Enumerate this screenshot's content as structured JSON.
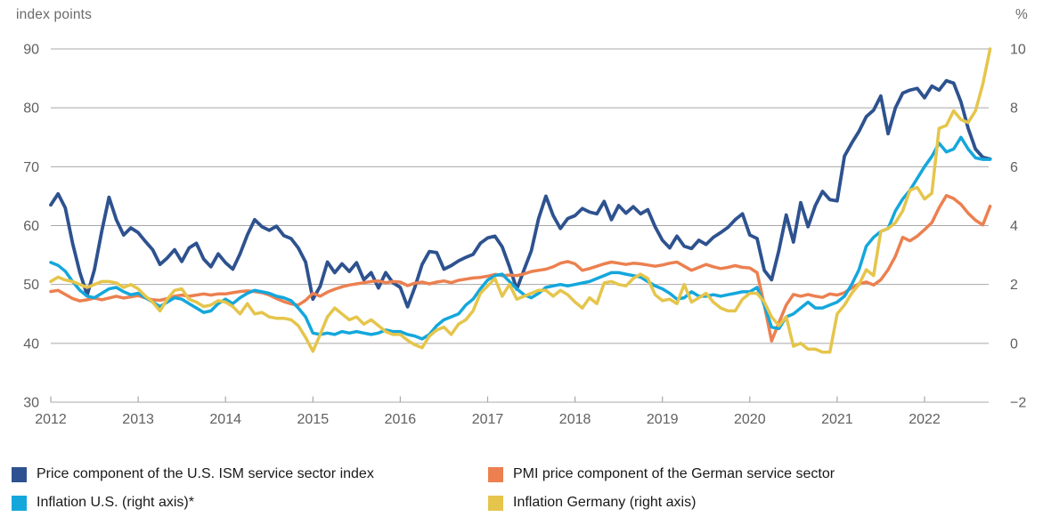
{
  "header": {
    "left_axis_title": "index points",
    "right_axis_title": "%"
  },
  "chart_data": {
    "type": "line",
    "title": "",
    "x_axis": {
      "tick_labels": [
        "2012",
        "2013",
        "2014",
        "2015",
        "2016",
        "2017",
        "2018",
        "2019",
        "2020",
        "2021",
        "2022"
      ],
      "start": "2012-01",
      "end": "2022-10",
      "frequency": "monthly"
    },
    "left_axis": {
      "title": "index points",
      "ticks": [
        90,
        80,
        70,
        60,
        50,
        40,
        30
      ],
      "range": [
        30,
        90
      ]
    },
    "right_axis": {
      "title": "%",
      "ticks": [
        10,
        8,
        6,
        4,
        2,
        0,
        -2
      ],
      "range": [
        -2,
        10
      ]
    },
    "grid": "horizontal",
    "colors": {
      "ism_us": "#2e528f",
      "pmi_germany": "#ec8050",
      "inflation_us": "#14a7dc",
      "inflation_germany": "#e5c54b",
      "gridline": "#a8a8a8",
      "axis_text": "#606060"
    },
    "series": [
      {
        "id": "ism_us",
        "label": "Price component of the U.S. ISM service sector index",
        "axis": "left",
        "color": "#2e528f",
        "values": [
          63.5,
          65.4,
          63.0,
          57.0,
          52.0,
          48.2,
          52.5,
          59.0,
          64.8,
          61.0,
          58.4,
          59.6,
          58.8,
          57.3,
          55.9,
          53.4,
          54.5,
          55.9,
          53.9,
          56.2,
          57.0,
          54.3,
          53.0,
          55.2,
          53.7,
          52.6,
          55.2,
          58.4,
          61.0,
          59.8,
          59.2,
          59.9,
          58.3,
          57.8,
          56.2,
          53.8,
          47.5,
          49.7,
          53.8,
          52.0,
          53.5,
          52.2,
          53.7,
          50.8,
          52.0,
          49.4,
          52.0,
          50.3,
          49.5,
          46.2,
          49.5,
          53.4,
          55.6,
          55.4,
          52.6,
          53.2,
          54.0,
          54.6,
          55.1,
          57.0,
          57.9,
          58.2,
          56.4,
          53.0,
          49.2,
          52.5,
          55.7,
          61.2,
          65.0,
          61.7,
          59.5,
          61.2,
          61.7,
          62.9,
          62.3,
          62.0,
          64.1,
          61.0,
          63.4,
          62.1,
          63.2,
          62.0,
          62.7,
          59.8,
          57.5,
          56.2,
          58.2,
          56.5,
          56.1,
          57.5,
          56.8,
          58.0,
          58.8,
          59.7,
          61.0,
          62.0,
          58.4,
          57.8,
          52.4,
          50.8,
          55.8,
          61.8,
          57.2,
          63.9,
          59.8,
          63.4,
          65.8,
          64.4,
          64.2,
          71.8,
          74.0,
          76.0,
          78.5,
          79.6,
          82.0,
          75.6,
          80.0,
          82.5,
          83.0,
          83.3,
          81.7,
          83.7,
          83.0,
          84.6,
          84.2,
          81.0,
          76.5,
          73.0,
          71.6,
          71.3
        ]
      },
      {
        "id": "pmi_germany",
        "label": "PMI price component of the German service sector",
        "axis": "left",
        "color": "#ec8050",
        "values": [
          48.8,
          49.0,
          48.3,
          47.6,
          47.2,
          47.4,
          47.7,
          47.4,
          47.7,
          48.0,
          47.7,
          47.9,
          48.1,
          47.7,
          47.4,
          47.3,
          47.6,
          48.0,
          48.2,
          48.0,
          48.2,
          48.4,
          48.2,
          48.4,
          48.4,
          48.6,
          48.8,
          48.9,
          48.8,
          48.6,
          48.2,
          47.6,
          47.1,
          46.7,
          46.5,
          47.3,
          48.5,
          48.0,
          48.7,
          49.2,
          49.6,
          49.9,
          50.1,
          50.3,
          50.5,
          50.6,
          50.3,
          50.5,
          50.4,
          49.8,
          50.2,
          50.4,
          50.1,
          50.4,
          50.6,
          50.3,
          50.7,
          50.9,
          51.1,
          51.2,
          51.4,
          51.7,
          51.5,
          51.6,
          51.5,
          51.8,
          52.2,
          52.4,
          52.6,
          53.0,
          53.6,
          53.9,
          53.5,
          52.4,
          52.7,
          53.1,
          53.5,
          53.8,
          53.6,
          53.4,
          53.6,
          53.5,
          53.3,
          53.1,
          53.3,
          53.6,
          53.8,
          53.1,
          52.4,
          52.9,
          53.4,
          53.0,
          52.7,
          52.9,
          53.2,
          52.9,
          52.8,
          52.0,
          46.5,
          40.4,
          43.5,
          46.5,
          48.3,
          48.0,
          48.3,
          48.0,
          47.8,
          48.4,
          48.2,
          48.6,
          49.4,
          50.1,
          50.4,
          49.9,
          50.8,
          52.5,
          54.8,
          58.0,
          57.4,
          58.2,
          59.3,
          60.5,
          63.0,
          65.1,
          64.6,
          63.6,
          62.1,
          60.9,
          60.1,
          63.3
        ]
      },
      {
        "id": "inflation_us",
        "label": "Inflation U.S. (right axis)*",
        "axis": "right",
        "color": "#14a7dc",
        "values": [
          2.75,
          2.65,
          2.45,
          2.1,
          1.8,
          1.6,
          1.55,
          1.7,
          1.85,
          1.9,
          1.75,
          1.65,
          1.7,
          1.55,
          1.4,
          1.25,
          1.4,
          1.55,
          1.5,
          1.35,
          1.2,
          1.05,
          1.1,
          1.35,
          1.5,
          1.35,
          1.55,
          1.7,
          1.8,
          1.75,
          1.7,
          1.6,
          1.55,
          1.45,
          1.2,
          0.9,
          0.35,
          0.3,
          0.35,
          0.3,
          0.4,
          0.35,
          0.4,
          0.35,
          0.3,
          0.35,
          0.45,
          0.4,
          0.4,
          0.3,
          0.25,
          0.15,
          0.3,
          0.6,
          0.8,
          0.9,
          1.0,
          1.3,
          1.5,
          1.85,
          2.15,
          2.3,
          2.35,
          2.1,
          1.85,
          1.65,
          1.55,
          1.7,
          1.9,
          1.95,
          2.0,
          1.95,
          2.0,
          2.05,
          2.1,
          2.2,
          2.3,
          2.4,
          2.4,
          2.35,
          2.3,
          2.25,
          2.1,
          1.95,
          1.85,
          1.7,
          1.5,
          1.55,
          1.75,
          1.6,
          1.6,
          1.65,
          1.6,
          1.65,
          1.7,
          1.75,
          1.75,
          1.9,
          1.3,
          0.55,
          0.5,
          0.9,
          1.0,
          1.2,
          1.4,
          1.2,
          1.2,
          1.3,
          1.4,
          1.6,
          2.0,
          2.5,
          3.3,
          3.6,
          3.8,
          3.9,
          4.5,
          4.9,
          5.2,
          5.6,
          6.0,
          6.35,
          6.8,
          6.5,
          6.6,
          7.0,
          6.6,
          6.3,
          6.25,
          6.25
        ]
      },
      {
        "id": "inflation_germany",
        "label": "Inflation Germany (right axis)",
        "axis": "right",
        "color": "#e5c54b",
        "values": [
          2.1,
          2.25,
          2.15,
          2.1,
          2.0,
          1.9,
          2.0,
          2.1,
          2.1,
          2.05,
          1.9,
          2.0,
          1.85,
          1.6,
          1.4,
          1.1,
          1.5,
          1.8,
          1.85,
          1.5,
          1.4,
          1.25,
          1.3,
          1.45,
          1.4,
          1.25,
          1.0,
          1.35,
          1.0,
          1.05,
          0.9,
          0.85,
          0.85,
          0.8,
          0.6,
          0.2,
          -0.27,
          0.3,
          0.9,
          1.2,
          1.0,
          0.8,
          0.9,
          0.65,
          0.8,
          0.6,
          0.4,
          0.3,
          0.3,
          0.1,
          -0.05,
          -0.15,
          0.25,
          0.45,
          0.55,
          0.3,
          0.65,
          0.8,
          1.1,
          1.7,
          1.95,
          2.2,
          1.6,
          2.0,
          1.5,
          1.6,
          1.7,
          1.8,
          1.8,
          1.6,
          1.8,
          1.65,
          1.4,
          1.2,
          1.55,
          1.35,
          2.05,
          2.1,
          2.0,
          1.95,
          2.2,
          2.35,
          2.2,
          1.65,
          1.45,
          1.5,
          1.35,
          2.0,
          1.4,
          1.55,
          1.7,
          1.4,
          1.2,
          1.1,
          1.1,
          1.5,
          1.7,
          1.7,
          1.4,
          0.9,
          0.6,
          0.9,
          -0.1,
          0.0,
          -0.2,
          -0.2,
          -0.3,
          -0.3,
          1.0,
          1.3,
          1.7,
          2.0,
          2.5,
          2.3,
          3.8,
          3.9,
          4.1,
          4.5,
          5.2,
          5.3,
          4.9,
          5.1,
          7.3,
          7.4,
          7.9,
          7.6,
          7.5,
          7.9,
          8.8,
          10.0
        ]
      }
    ],
    "legend": [
      {
        "series_index": 0,
        "column": 0,
        "row": 0
      },
      {
        "series_index": 2,
        "column": 0,
        "row": 1
      },
      {
        "series_index": 1,
        "column": 1,
        "row": 0
      },
      {
        "series_index": 3,
        "column": 1,
        "row": 1
      }
    ],
    "legend_position": "bottom"
  }
}
